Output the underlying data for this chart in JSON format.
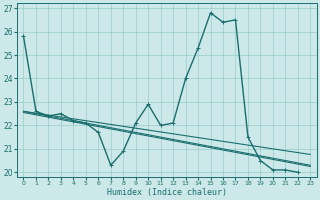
{
  "xlabel": "Humidex (Indice chaleur)",
  "bg_color": "#cce8e8",
  "grid_color": "#99cccc",
  "line_color": "#1a6e6e",
  "xlim": [
    -0.5,
    23.5
  ],
  "ylim": [
    19.8,
    27.2
  ],
  "yticks": [
    20,
    21,
    22,
    23,
    24,
    25,
    26,
    27
  ],
  "xticks": [
    0,
    1,
    2,
    3,
    4,
    5,
    6,
    7,
    8,
    9,
    10,
    11,
    12,
    13,
    14,
    15,
    16,
    17,
    18,
    19,
    20,
    21,
    22,
    23
  ],
  "series": [
    {
      "x": [
        0,
        1,
        2,
        3,
        4,
        5,
        6,
        7,
        8,
        9,
        10,
        11,
        12,
        13,
        14,
        15,
        16,
        17,
        18,
        19,
        20,
        21,
        22
      ],
      "y": [
        25.8,
        22.6,
        22.4,
        22.5,
        22.2,
        22.1,
        21.7,
        20.3,
        20.9,
        22.1,
        22.9,
        22.0,
        22.1,
        24.0,
        25.3,
        26.8,
        26.4,
        26.5,
        21.5,
        20.5,
        20.1,
        20.1,
        20.0
      ],
      "marker": true,
      "lw": 1.0
    },
    {
      "x": [
        0,
        1,
        2,
        3,
        4,
        5,
        6,
        7,
        8,
        9,
        10,
        11,
        12,
        13,
        14,
        15,
        16,
        17,
        18,
        19,
        20,
        21,
        22,
        23
      ],
      "y": [
        22.55,
        22.45,
        22.35,
        22.25,
        22.15,
        22.05,
        21.95,
        21.85,
        21.75,
        21.65,
        21.55,
        21.45,
        21.35,
        21.25,
        21.15,
        21.05,
        20.95,
        20.85,
        20.75,
        20.65,
        20.55,
        20.45,
        20.35,
        20.25
      ],
      "marker": false,
      "lw": 0.8
    },
    {
      "x": [
        0,
        1,
        2,
        3,
        4,
        5,
        6,
        7,
        8,
        9,
        10,
        11,
        12,
        13,
        14,
        15,
        16,
        17,
        18,
        19,
        20,
        21,
        22,
        23
      ],
      "y": [
        22.6,
        22.5,
        22.4,
        22.3,
        22.2,
        22.1,
        22.0,
        21.9,
        21.8,
        21.7,
        21.6,
        21.5,
        21.4,
        21.3,
        21.2,
        21.1,
        21.0,
        20.9,
        20.8,
        20.7,
        20.6,
        20.5,
        20.4,
        20.3
      ],
      "marker": false,
      "lw": 0.8
    },
    {
      "x": [
        0,
        1,
        2,
        3,
        4,
        5,
        6,
        7,
        8,
        9,
        10,
        11,
        12,
        13,
        14,
        15,
        16,
        17,
        18,
        19,
        20,
        21,
        22,
        23
      ],
      "y": [
        22.6,
        22.52,
        22.44,
        22.36,
        22.28,
        22.2,
        22.12,
        22.04,
        21.96,
        21.88,
        21.8,
        21.72,
        21.64,
        21.56,
        21.48,
        21.4,
        21.32,
        21.24,
        21.16,
        21.08,
        21.0,
        20.92,
        20.84,
        20.76
      ],
      "marker": false,
      "lw": 0.8
    }
  ]
}
